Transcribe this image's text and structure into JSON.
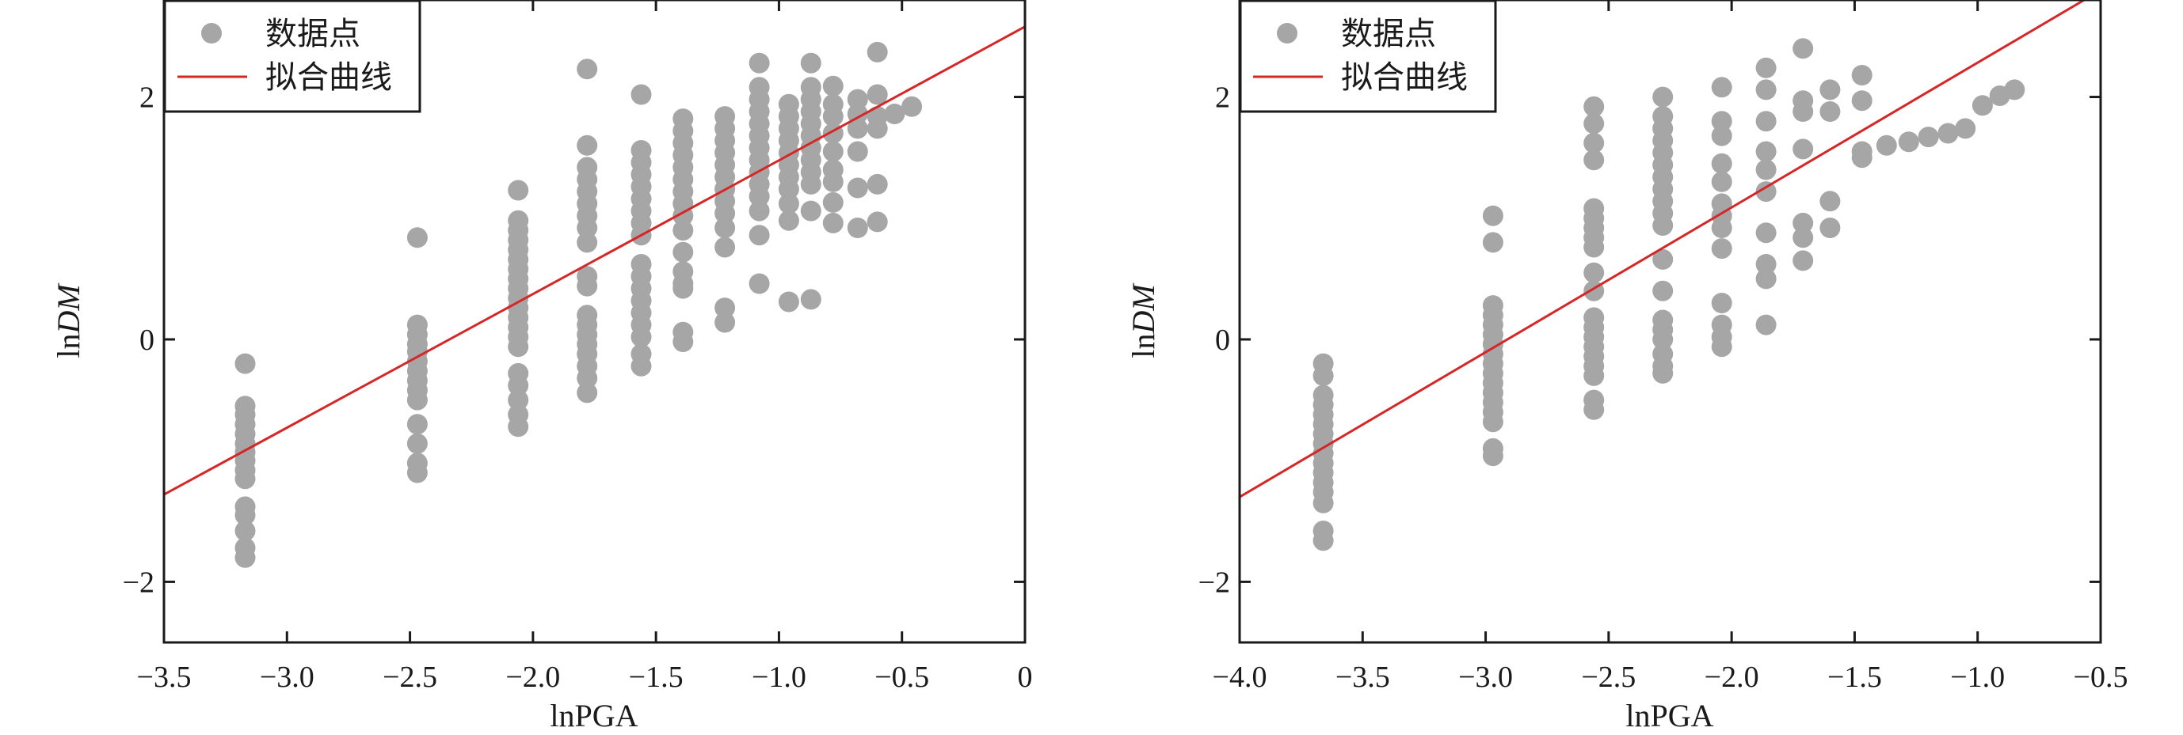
{
  "chart_data": [
    {
      "type": "scatter",
      "title": "",
      "xlabel": "lnPGA",
      "ylabel_prefix": "ln",
      "ylabel_var": "DM",
      "xlim": [
        -3.5,
        0
      ],
      "ylim": [
        -2.5,
        2.8
      ],
      "x_ticks": [
        -3.5,
        -3.0,
        -2.5,
        -2.0,
        -1.5,
        -1.0,
        -0.5,
        0
      ],
      "x_tick_labels": [
        "−3.5",
        "−3.0",
        "−2.5",
        "−2.0",
        "−1.5",
        "−1.0",
        "−0.5",
        "0"
      ],
      "y_ticks": [
        -2,
        0,
        2
      ],
      "y_tick_labels": [
        "−2",
        "0",
        "2"
      ],
      "grid": false,
      "legend_position": "top-left",
      "legend": [
        "数据点",
        "拟合曲线"
      ],
      "fit_line": {
        "name": "拟合曲线",
        "color": "#d62728",
        "x": [
          -3.5,
          0
        ],
        "y": [
          -1.28,
          2.58
        ]
      },
      "points_color": "#a6a6a6",
      "points": [
        [
          -3.17,
          -0.2
        ],
        [
          -3.17,
          -0.55
        ],
        [
          -3.17,
          -0.62
        ],
        [
          -3.17,
          -0.7
        ],
        [
          -3.17,
          -0.78
        ],
        [
          -3.17,
          -0.86
        ],
        [
          -3.17,
          -0.93
        ],
        [
          -3.17,
          -1.0
        ],
        [
          -3.17,
          -1.08
        ],
        [
          -3.17,
          -1.15
        ],
        [
          -3.17,
          -1.38
        ],
        [
          -3.17,
          -1.45
        ],
        [
          -3.17,
          -1.58
        ],
        [
          -3.17,
          -1.72
        ],
        [
          -3.17,
          -1.8
        ],
        [
          -2.47,
          0.84
        ],
        [
          -2.47,
          0.12
        ],
        [
          -2.47,
          0.04
        ],
        [
          -2.47,
          -0.04
        ],
        [
          -2.47,
          -0.1
        ],
        [
          -2.47,
          -0.18
        ],
        [
          -2.47,
          -0.26
        ],
        [
          -2.47,
          -0.34
        ],
        [
          -2.47,
          -0.42
        ],
        [
          -2.47,
          -0.5
        ],
        [
          -2.47,
          -0.7
        ],
        [
          -2.47,
          -0.86
        ],
        [
          -2.47,
          -1.02
        ],
        [
          -2.47,
          -1.1
        ],
        [
          -2.06,
          1.23
        ],
        [
          -2.06,
          0.98
        ],
        [
          -2.06,
          0.9
        ],
        [
          -2.06,
          0.82
        ],
        [
          -2.06,
          0.74
        ],
        [
          -2.06,
          0.66
        ],
        [
          -2.06,
          0.58
        ],
        [
          -2.06,
          0.5
        ],
        [
          -2.06,
          0.42
        ],
        [
          -2.06,
          0.34
        ],
        [
          -2.06,
          0.26
        ],
        [
          -2.06,
          0.18
        ],
        [
          -2.06,
          0.1
        ],
        [
          -2.06,
          0.02
        ],
        [
          -2.06,
          -0.06
        ],
        [
          -2.06,
          -0.28
        ],
        [
          -2.06,
          -0.38
        ],
        [
          -2.06,
          -0.5
        ],
        [
          -2.06,
          -0.62
        ],
        [
          -2.06,
          -0.72
        ],
        [
          -1.78,
          2.23
        ],
        [
          -1.78,
          1.6
        ],
        [
          -1.78,
          1.42
        ],
        [
          -1.78,
          1.32
        ],
        [
          -1.78,
          1.22
        ],
        [
          -1.78,
          1.12
        ],
        [
          -1.78,
          1.02
        ],
        [
          -1.78,
          0.92
        ],
        [
          -1.78,
          0.8
        ],
        [
          -1.78,
          0.52
        ],
        [
          -1.78,
          0.44
        ],
        [
          -1.78,
          0.2
        ],
        [
          -1.78,
          0.12
        ],
        [
          -1.78,
          0.04
        ],
        [
          -1.78,
          -0.04
        ],
        [
          -1.78,
          -0.12
        ],
        [
          -1.78,
          -0.22
        ],
        [
          -1.78,
          -0.32
        ],
        [
          -1.78,
          -0.44
        ],
        [
          -1.56,
          2.02
        ],
        [
          -1.56,
          1.56
        ],
        [
          -1.56,
          1.46
        ],
        [
          -1.56,
          1.36
        ],
        [
          -1.56,
          1.26
        ],
        [
          -1.56,
          1.16
        ],
        [
          -1.56,
          1.06
        ],
        [
          -1.56,
          0.96
        ],
        [
          -1.56,
          0.86
        ],
        [
          -1.56,
          0.62
        ],
        [
          -1.56,
          0.52
        ],
        [
          -1.56,
          0.42
        ],
        [
          -1.56,
          0.32
        ],
        [
          -1.56,
          0.22
        ],
        [
          -1.56,
          0.12
        ],
        [
          -1.56,
          0.02
        ],
        [
          -1.56,
          -0.12
        ],
        [
          -1.56,
          -0.22
        ],
        [
          -1.39,
          1.82
        ],
        [
          -1.39,
          1.72
        ],
        [
          -1.39,
          1.62
        ],
        [
          -1.39,
          1.52
        ],
        [
          -1.39,
          1.42
        ],
        [
          -1.39,
          1.32
        ],
        [
          -1.39,
          1.22
        ],
        [
          -1.39,
          1.12
        ],
        [
          -1.39,
          1.02
        ],
        [
          -1.39,
          0.9
        ],
        [
          -1.39,
          0.72
        ],
        [
          -1.39,
          0.56
        ],
        [
          -1.39,
          0.46
        ],
        [
          -1.39,
          0.42
        ],
        [
          -1.39,
          0.06
        ],
        [
          -1.39,
          -0.02
        ],
        [
          -1.22,
          1.84
        ],
        [
          -1.22,
          1.74
        ],
        [
          -1.22,
          1.64
        ],
        [
          -1.22,
          1.54
        ],
        [
          -1.22,
          1.44
        ],
        [
          -1.22,
          1.34
        ],
        [
          -1.22,
          1.24
        ],
        [
          -1.22,
          1.14
        ],
        [
          -1.22,
          1.04
        ],
        [
          -1.22,
          0.92
        ],
        [
          -1.22,
          0.76
        ],
        [
          -1.22,
          0.26
        ],
        [
          -1.22,
          0.14
        ],
        [
          -1.08,
          2.28
        ],
        [
          -1.08,
          2.08
        ],
        [
          -1.08,
          1.98
        ],
        [
          -1.08,
          1.88
        ],
        [
          -1.08,
          1.78
        ],
        [
          -1.08,
          1.68
        ],
        [
          -1.08,
          1.58
        ],
        [
          -1.08,
          1.48
        ],
        [
          -1.08,
          1.38
        ],
        [
          -1.08,
          1.28
        ],
        [
          -1.08,
          1.18
        ],
        [
          -1.08,
          1.06
        ],
        [
          -1.08,
          0.86
        ],
        [
          -1.08,
          0.46
        ],
        [
          -0.96,
          1.94
        ],
        [
          -0.96,
          1.84
        ],
        [
          -0.96,
          1.74
        ],
        [
          -0.96,
          1.64
        ],
        [
          -0.96,
          1.54
        ],
        [
          -0.96,
          1.44
        ],
        [
          -0.96,
          1.34
        ],
        [
          -0.96,
          1.24
        ],
        [
          -0.96,
          1.12
        ],
        [
          -0.96,
          0.98
        ],
        [
          -0.96,
          0.31
        ],
        [
          -0.87,
          2.28
        ],
        [
          -0.87,
          2.08
        ],
        [
          -0.87,
          1.98
        ],
        [
          -0.87,
          1.88
        ],
        [
          -0.87,
          1.78
        ],
        [
          -0.87,
          1.68
        ],
        [
          -0.87,
          1.58
        ],
        [
          -0.87,
          1.48
        ],
        [
          -0.87,
          1.38
        ],
        [
          -0.87,
          1.28
        ],
        [
          -0.87,
          1.06
        ],
        [
          -0.87,
          0.33
        ],
        [
          -0.78,
          2.09
        ],
        [
          -0.78,
          1.94
        ],
        [
          -0.78,
          1.84
        ],
        [
          -0.78,
          1.7
        ],
        [
          -0.78,
          1.55
        ],
        [
          -0.78,
          1.4
        ],
        [
          -0.78,
          1.3
        ],
        [
          -0.78,
          1.13
        ],
        [
          -0.78,
          0.96
        ],
        [
          -0.68,
          1.98
        ],
        [
          -0.68,
          1.86
        ],
        [
          -0.68,
          1.74
        ],
        [
          -0.68,
          1.55
        ],
        [
          -0.68,
          1.25
        ],
        [
          -0.68,
          0.92
        ],
        [
          -0.6,
          2.37
        ],
        [
          -0.6,
          2.02
        ],
        [
          -0.6,
          1.84
        ],
        [
          -0.6,
          1.74
        ],
        [
          -0.6,
          1.28
        ],
        [
          -0.6,
          0.97
        ],
        [
          -0.53,
          1.86
        ],
        [
          -0.46,
          1.92
        ]
      ]
    },
    {
      "type": "scatter",
      "title": "",
      "xlabel": "lnPGA",
      "ylabel_prefix": "ln",
      "ylabel_var": "DM",
      "xlim": [
        -4.0,
        -0.5
      ],
      "ylim": [
        -2.5,
        2.8
      ],
      "x_ticks": [
        -4.0,
        -3.5,
        -3.0,
        -2.5,
        -2.0,
        -1.5,
        -1.0,
        -0.5
      ],
      "x_tick_labels": [
        "−4.0",
        "−3.5",
        "−3.0",
        "−2.5",
        "−2.0",
        "−1.5",
        "−1.0",
        "−0.5"
      ],
      "y_ticks": [
        -2,
        0,
        2
      ],
      "y_tick_labels": [
        "−2",
        "0",
        "2"
      ],
      "grid": false,
      "legend_position": "top-left",
      "legend": [
        "数据点",
        "拟合曲线"
      ],
      "fit_line": {
        "name": "拟合曲线",
        "color": "#d62728",
        "x": [
          -4.0,
          -0.5
        ],
        "y": [
          -1.3,
          2.88
        ]
      },
      "points_color": "#a6a6a6",
      "points": [
        [
          -3.66,
          -0.2
        ],
        [
          -3.66,
          -0.3
        ],
        [
          -3.66,
          -0.46
        ],
        [
          -3.66,
          -0.54
        ],
        [
          -3.66,
          -0.62
        ],
        [
          -3.66,
          -0.7
        ],
        [
          -3.66,
          -0.78
        ],
        [
          -3.66,
          -0.86
        ],
        [
          -3.66,
          -0.94
        ],
        [
          -3.66,
          -1.02
        ],
        [
          -3.66,
          -1.1
        ],
        [
          -3.66,
          -1.18
        ],
        [
          -3.66,
          -1.26
        ],
        [
          -3.66,
          -1.35
        ],
        [
          -3.66,
          -1.58
        ],
        [
          -3.66,
          -1.66
        ],
        [
          -2.97,
          1.02
        ],
        [
          -2.97,
          0.8
        ],
        [
          -2.97,
          0.28
        ],
        [
          -2.97,
          0.2
        ],
        [
          -2.97,
          0.12
        ],
        [
          -2.97,
          0.04
        ],
        [
          -2.97,
          -0.04
        ],
        [
          -2.97,
          -0.12
        ],
        [
          -2.97,
          -0.2
        ],
        [
          -2.97,
          -0.28
        ],
        [
          -2.97,
          -0.36
        ],
        [
          -2.97,
          -0.44
        ],
        [
          -2.97,
          -0.52
        ],
        [
          -2.97,
          -0.6
        ],
        [
          -2.97,
          -0.68
        ],
        [
          -2.97,
          -0.9
        ],
        [
          -2.97,
          -0.96
        ],
        [
          -2.56,
          1.92
        ],
        [
          -2.56,
          1.78
        ],
        [
          -2.56,
          1.62
        ],
        [
          -2.56,
          1.48
        ],
        [
          -2.56,
          1.08
        ],
        [
          -2.56,
          1.0
        ],
        [
          -2.56,
          0.92
        ],
        [
          -2.56,
          0.84
        ],
        [
          -2.56,
          0.76
        ],
        [
          -2.56,
          0.55
        ],
        [
          -2.56,
          0.4
        ],
        [
          -2.56,
          0.18
        ],
        [
          -2.56,
          0.1
        ],
        [
          -2.56,
          0.02
        ],
        [
          -2.56,
          -0.06
        ],
        [
          -2.56,
          -0.14
        ],
        [
          -2.56,
          -0.22
        ],
        [
          -2.56,
          -0.3
        ],
        [
          -2.56,
          -0.5
        ],
        [
          -2.56,
          -0.58
        ],
        [
          -2.28,
          2.0
        ],
        [
          -2.28,
          1.84
        ],
        [
          -2.28,
          1.74
        ],
        [
          -2.28,
          1.64
        ],
        [
          -2.28,
          1.54
        ],
        [
          -2.28,
          1.44
        ],
        [
          -2.28,
          1.34
        ],
        [
          -2.28,
          1.24
        ],
        [
          -2.28,
          1.14
        ],
        [
          -2.28,
          1.04
        ],
        [
          -2.28,
          0.94
        ],
        [
          -2.28,
          0.66
        ],
        [
          -2.28,
          0.4
        ],
        [
          -2.28,
          0.16
        ],
        [
          -2.28,
          0.08
        ],
        [
          -2.28,
          0.0
        ],
        [
          -2.28,
          -0.12
        ],
        [
          -2.28,
          -0.22
        ],
        [
          -2.28,
          -0.28
        ],
        [
          -2.04,
          2.08
        ],
        [
          -2.04,
          1.8
        ],
        [
          -2.04,
          1.68
        ],
        [
          -2.04,
          1.45
        ],
        [
          -2.04,
          1.3
        ],
        [
          -2.04,
          1.12
        ],
        [
          -2.04,
          1.02
        ],
        [
          -2.04,
          0.92
        ],
        [
          -2.04,
          0.75
        ],
        [
          -2.04,
          0.3
        ],
        [
          -2.04,
          0.12
        ],
        [
          -2.04,
          0.02
        ],
        [
          -2.04,
          -0.06
        ],
        [
          -1.86,
          2.24
        ],
        [
          -1.86,
          2.06
        ],
        [
          -1.86,
          1.8
        ],
        [
          -1.86,
          1.55
        ],
        [
          -1.86,
          1.4
        ],
        [
          -1.86,
          1.22
        ],
        [
          -1.86,
          0.88
        ],
        [
          -1.86,
          0.62
        ],
        [
          -1.86,
          0.5
        ],
        [
          -1.86,
          0.12
        ],
        [
          -1.71,
          2.4
        ],
        [
          -1.71,
          1.97
        ],
        [
          -1.71,
          1.88
        ],
        [
          -1.71,
          1.57
        ],
        [
          -1.71,
          0.96
        ],
        [
          -1.71,
          0.84
        ],
        [
          -1.71,
          0.65
        ],
        [
          -1.6,
          2.06
        ],
        [
          -1.6,
          1.88
        ],
        [
          -1.6,
          1.14
        ],
        [
          -1.6,
          0.92
        ],
        [
          -1.47,
          2.18
        ],
        [
          -1.47,
          1.97
        ],
        [
          -1.47,
          1.55
        ],
        [
          -1.47,
          1.5
        ],
        [
          -1.37,
          1.6
        ],
        [
          -1.28,
          1.63
        ],
        [
          -1.2,
          1.67
        ],
        [
          -1.12,
          1.7
        ],
        [
          -1.05,
          1.74
        ],
        [
          -0.98,
          1.93
        ],
        [
          -0.91,
          2.01
        ],
        [
          -0.85,
          2.06
        ]
      ]
    }
  ]
}
